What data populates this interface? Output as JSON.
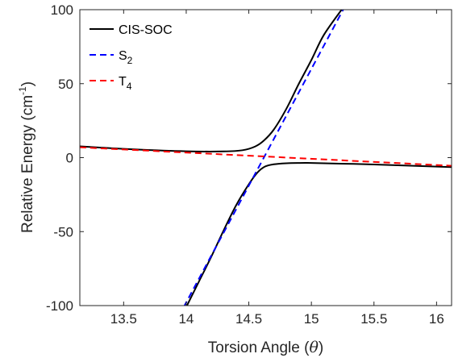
{
  "chart_data": {
    "type": "line",
    "xlabel_text": "Torsion Angle (",
    "xlabel_symbol": "θ",
    "xlabel_close": ")",
    "ylabel_text": "Relative Energy (cm",
    "ylabel_sup": "-1",
    "ylabel_close": ")",
    "xlim": [
      13.15,
      16.12
    ],
    "ylim": [
      -100,
      100
    ],
    "xticks": [
      13.5,
      14,
      14.5,
      15,
      15.5,
      16
    ],
    "xtick_labels": [
      "13.5",
      "14",
      "14.5",
      "15",
      "15.5",
      "16"
    ],
    "yticks": [
      -100,
      -50,
      0,
      50,
      100
    ],
    "ytick_labels": [
      "-100",
      "-50",
      "0",
      "50",
      "100"
    ],
    "grid": false,
    "legend_position": "top-left",
    "series": [
      {
        "name": "CIS-SOC",
        "color": "#000000",
        "style": "solid",
        "branches": [
          {
            "x": [
              13.15,
              13.6,
              14.0,
              14.3,
              14.45,
              14.55,
              14.62,
              14.7,
              14.8,
              14.9,
              15.0,
              15.1,
              15.25
            ],
            "y": [
              7.6,
              5.5,
              4.3,
              4.2,
              5.0,
              7.5,
              11.5,
              19,
              33,
              50,
              66,
              83,
              101
            ]
          },
          {
            "x": [
              14.0,
              14.1,
              14.2,
              14.3,
              14.4,
              14.5,
              14.57,
              14.63,
              14.7,
              14.8,
              14.9,
              15.0,
              15.2,
              15.5,
              16.12
            ],
            "y": [
              -101,
              -84,
              -67,
              -49,
              -32,
              -18,
              -10,
              -6,
              -4.5,
              -3.8,
              -3.6,
              -3.6,
              -4.0,
              -4.6,
              -6.4
            ]
          }
        ]
      },
      {
        "name": "S",
        "sub": "2",
        "color": "#0000ff",
        "style": "dashed",
        "x": [
          13.98,
          15.26
        ],
        "y": [
          -101,
          101
        ]
      },
      {
        "name": "T",
        "sub": "4",
        "color": "#ff0000",
        "style": "dashed",
        "x": [
          13.15,
          16.12
        ],
        "y": [
          7.0,
          -5.5
        ]
      }
    ]
  }
}
